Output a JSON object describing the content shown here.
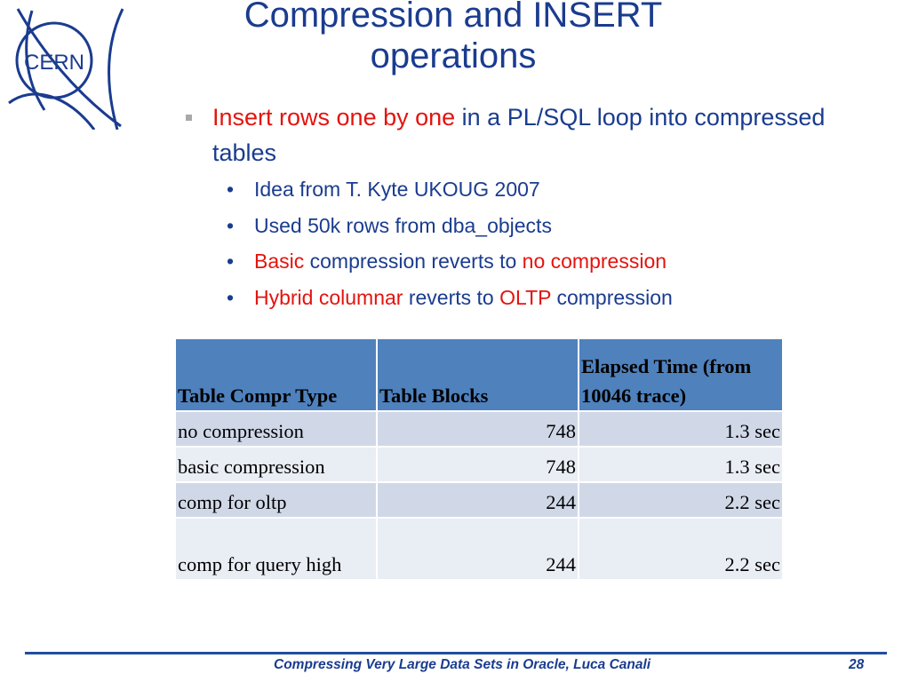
{
  "logo": {
    "text": "CERN"
  },
  "title": {
    "line1": "Compression and INSERT",
    "line2": "operations"
  },
  "main_bullet": {
    "red_part": "Insert rows one by one",
    "rest": " in a PL/SQL loop into compressed tables"
  },
  "sub_bullets": [
    {
      "parts": [
        {
          "text": "Idea from T. Kyte UKOUG 2007",
          "red": false
        }
      ]
    },
    {
      "parts": [
        {
          "text": "Used 50k rows from dba_objects",
          "red": false
        }
      ]
    },
    {
      "parts": [
        {
          "text": "Basic",
          "red": true
        },
        {
          "text": " compression reverts to ",
          "red": false
        },
        {
          "text": "no compression",
          "red": true
        }
      ]
    },
    {
      "parts": [
        {
          "text": "Hybrid columnar",
          "red": true
        },
        {
          "text": " reverts to ",
          "red": false
        },
        {
          "text": "OLTP",
          "red": true
        },
        {
          "text": " compression",
          "red": false
        }
      ]
    }
  ],
  "table": {
    "headers": [
      "Table Compr Type",
      "Table Blocks",
      "Elapsed Time (from 10046 trace)"
    ],
    "rows": [
      [
        "no compression",
        "748",
        "1.3 sec"
      ],
      [
        "basic compression",
        "748",
        "1.3 sec"
      ],
      [
        "comp for oltp",
        "244",
        "2.2 sec"
      ],
      [
        "comp for query high",
        "244",
        "2.2 sec"
      ]
    ]
  },
  "footer": {
    "text": "Compressing Very Large Data Sets in Oracle, Luca Canali",
    "page": "28"
  },
  "colors": {
    "title_blue": "#1a3c8f",
    "accent_red": "#e3140f",
    "header_fill": "#4f81bd",
    "row_fill_dark": "#d0d8e8",
    "row_fill_light": "#e9edf4"
  }
}
